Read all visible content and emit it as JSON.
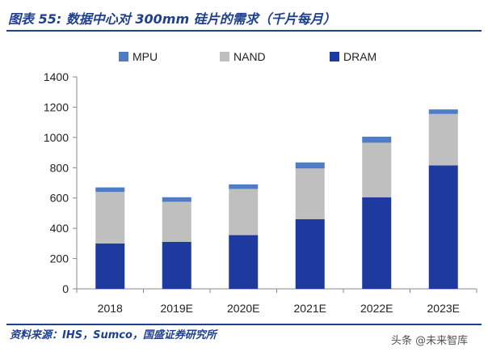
{
  "figure": {
    "title": "图表 55: 数据中心对 300mm 硅片的需求（千片每月）",
    "source": "资料来源：IHS，Sumco，国盛证券研究所",
    "watermark": "头条 @未来智库"
  },
  "chart_data": {
    "type": "bar",
    "stacked": true,
    "categories": [
      "2018",
      "2019E",
      "2020E",
      "2021E",
      "2022E",
      "2023E"
    ],
    "series": [
      {
        "name": "DRAM",
        "color": "#1f3a9e",
        "values": [
          300,
          310,
          355,
          460,
          605,
          815
        ]
      },
      {
        "name": "NAND",
        "color": "#bfbfbf",
        "values": [
          340,
          265,
          305,
          335,
          360,
          340
        ]
      },
      {
        "name": "MPU",
        "color": "#4f7dc4",
        "values": [
          30,
          30,
          30,
          40,
          40,
          30
        ]
      }
    ],
    "legend_order": [
      "MPU",
      "NAND",
      "DRAM"
    ],
    "legend_position": "top",
    "ylim": [
      0,
      1400
    ],
    "yticks": [
      0,
      200,
      400,
      600,
      800,
      1000,
      1200,
      1400
    ],
    "grid": false,
    "xlabel": "",
    "ylabel": ""
  }
}
